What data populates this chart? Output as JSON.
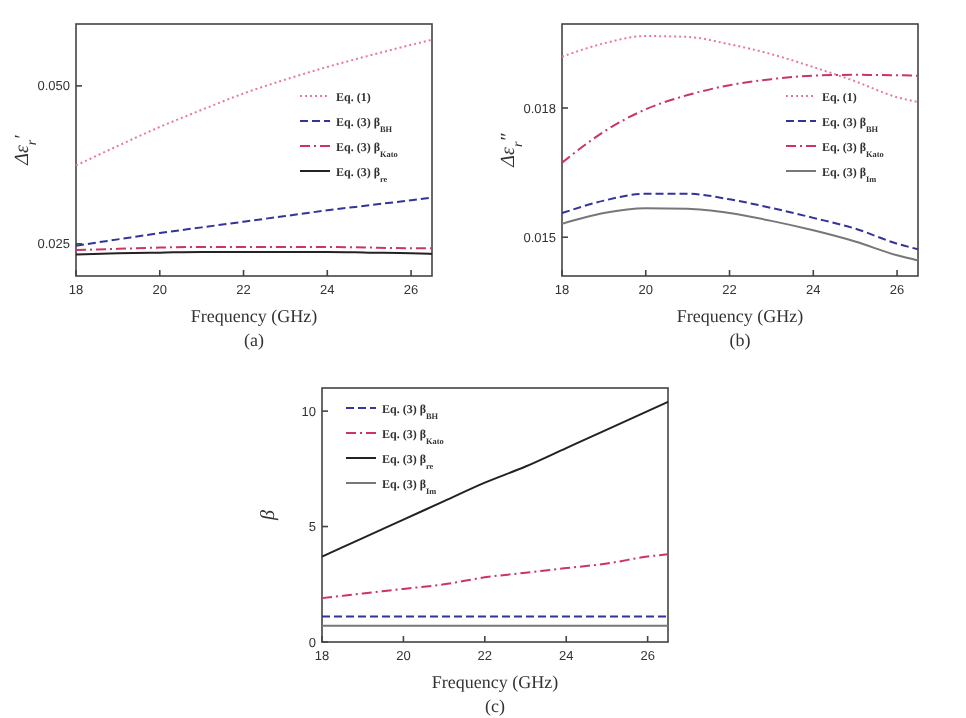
{
  "chart_data": [
    {
      "type": "line",
      "xlabel": "Frequency (GHz)",
      "ylabel": "Δε$_{r}$′",
      "annotations": [
        "(a)"
      ],
      "x": [
        18,
        19,
        20,
        21,
        22,
        23,
        24,
        25,
        26,
        26.5
      ],
      "xlim": [
        18,
        26.5
      ],
      "xticks": [
        18,
        20,
        22,
        24,
        26
      ],
      "ylim": [
        0.0199,
        0.0598
      ],
      "yticks": [
        {
          "value": 0.025,
          "label": "0.025"
        },
        {
          "value": 0.05,
          "label": "0.050"
        }
      ],
      "grid": false,
      "legend": "right",
      "marker": "none",
      "series": [
        {
          "name": "Eq. (1)",
          "color": "#e8799a",
          "line_style": "dotted",
          "values": [
            0.0374,
            0.0405,
            0.0435,
            0.0462,
            0.0488,
            0.051,
            0.053,
            0.0548,
            0.0565,
            0.0573
          ]
        },
        {
          "name": "Eq. (3) β$_{BH}$",
          "color": "#333399",
          "line_style": "dashed",
          "values": [
            0.0247,
            0.0257,
            0.0267,
            0.0276,
            0.0285,
            0.0294,
            0.0303,
            0.0311,
            0.0319,
            0.0323
          ]
        },
        {
          "name": "Eq. (3) β$_{Kato}$",
          "color": "#cc3366",
          "line_style": "dashdot",
          "values": [
            0.024,
            0.0242,
            0.0244,
            0.0245,
            0.0245,
            0.0245,
            0.0245,
            0.0244,
            0.0243,
            0.0243
          ]
        },
        {
          "name": "Eq. (3) β$_{re}$",
          "color": "#222222",
          "line_style": "solid",
          "values": [
            0.0233,
            0.0235,
            0.0236,
            0.0237,
            0.0237,
            0.0237,
            0.0237,
            0.0236,
            0.0235,
            0.0234
          ]
        }
      ]
    },
    {
      "type": "line",
      "xlabel": "Frequency (GHz)",
      "ylabel": "Δε$_{r}$″",
      "annotations": [
        "(b)"
      ],
      "x": [
        18,
        19,
        20,
        21,
        22,
        23,
        24,
        25,
        26,
        26.5
      ],
      "xlim": [
        18,
        26.5
      ],
      "xticks": [
        18,
        20,
        22,
        24,
        26
      ],
      "ylim": [
        0.0141,
        0.01995
      ],
      "yticks": [
        0.015,
        0.018
      ],
      "grid": false,
      "legend": "right",
      "marker": "none",
      "series": [
        {
          "name": "Eq. (1)",
          "color": "#e8799a",
          "line_style": "dotted",
          "values": [
            0.01919,
            0.0195,
            0.01967,
            0.01965,
            0.01948,
            0.01925,
            0.01895,
            0.01862,
            0.01825,
            0.01814
          ]
        },
        {
          "name": "Eq. (3) β$_{BH}$",
          "color": "#333399",
          "line_style": "dashed",
          "values": [
            0.01556,
            0.01585,
            0.01601,
            0.01601,
            0.01588,
            0.01568,
            0.01545,
            0.0152,
            0.01485,
            0.01472
          ]
        },
        {
          "name": "Eq. (3) β$_{Kato}$",
          "color": "#cc3366",
          "line_style": "dashdot",
          "values": [
            0.01673,
            0.01745,
            0.01797,
            0.0183,
            0.01853,
            0.01867,
            0.01875,
            0.01877,
            0.01876,
            0.01875
          ]
        },
        {
          "name": "Eq. (3) β$_{Im}$",
          "color": "#777777",
          "line_style": "solid",
          "values": [
            0.01531,
            0.01556,
            0.01567,
            0.01566,
            0.01556,
            0.01538,
            0.01516,
            0.0149,
            0.01458,
            0.01446
          ]
        }
      ]
    },
    {
      "type": "line",
      "xlabel": "Frequency (GHz)",
      "ylabel": "β",
      "annotations": [
        "(c)"
      ],
      "x": [
        18,
        19,
        20,
        21,
        22,
        23,
        24,
        25,
        26,
        26.5
      ],
      "xlim": [
        18,
        26.5
      ],
      "xticks": [
        18,
        20,
        22,
        24,
        26
      ],
      "ylim": [
        0,
        11
      ],
      "yticks": [
        0,
        5,
        10
      ],
      "grid": false,
      "legend": "top left",
      "marker": "none",
      "series": [
        {
          "name": "Eq. (3) β$_{BH}$",
          "color": "#333399",
          "line_style": "dashed",
          "values": [
            1.1,
            1.1,
            1.1,
            1.1,
            1.1,
            1.1,
            1.1,
            1.1,
            1.1,
            1.1
          ]
        },
        {
          "name": "Eq. (3) β$_{Kato}$",
          "color": "#cc3366",
          "line_style": "dashdot",
          "values": [
            1.9,
            2.1,
            2.3,
            2.5,
            2.8,
            3.0,
            3.2,
            3.4,
            3.7,
            3.8
          ]
        },
        {
          "name": "Eq. (3) β$_{re}$",
          "color": "#222222",
          "line_style": "solid",
          "values": [
            3.7,
            4.5,
            5.3,
            6.1,
            6.9,
            7.6,
            8.4,
            9.2,
            10.0,
            10.4
          ]
        },
        {
          "name": "Eq. (3) β$_{Im}$",
          "color": "#777777",
          "line_style": "solid",
          "values": [
            0.7,
            0.7,
            0.7,
            0.7,
            0.7,
            0.7,
            0.7,
            0.7,
            0.7,
            0.7
          ]
        }
      ]
    }
  ]
}
